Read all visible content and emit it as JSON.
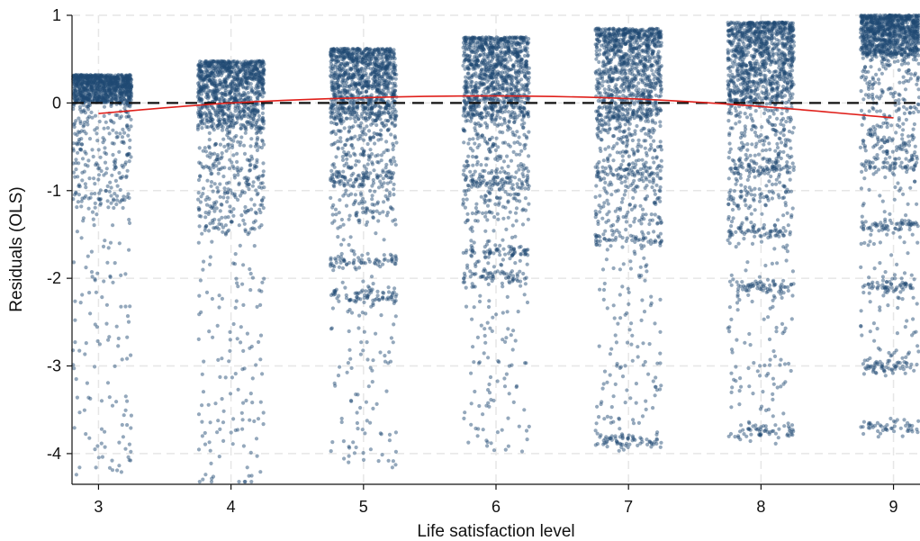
{
  "chart_data": {
    "type": "scatter",
    "title": "",
    "xlabel": "Life satisfaction level",
    "ylabel": "Residuals (OLS)",
    "xlim": [
      2.8,
      9.2
    ],
    "ylim": [
      -4.35,
      1.0
    ],
    "x_ticks": [
      3,
      4,
      5,
      6,
      7,
      8,
      9
    ],
    "y_ticks": [
      1,
      0,
      -1,
      -2,
      -3,
      -4
    ],
    "x_tick_labels": [
      "3",
      "4",
      "5",
      "6",
      "7",
      "8",
      "9"
    ],
    "y_tick_labels": [
      "1",
      "0",
      "-1",
      "-2",
      "-3",
      "-4"
    ],
    "grid": true,
    "legend": "none",
    "reference_line": {
      "y": 0,
      "style": "dashed",
      "color": "#111111"
    },
    "series": [
      {
        "type": "jittered-scatter",
        "color": "#1f4a73",
        "jitter_width": 0.25,
        "groups": [
          {
            "x": 3,
            "upper_bound": 0.32,
            "dense_floor": 0.0,
            "bands": []
          },
          {
            "x": 4,
            "upper_bound": 0.48,
            "dense_floor": -0.3,
            "bands": []
          },
          {
            "x": 5,
            "upper_bound": 0.62,
            "dense_floor": -0.2,
            "bands": [
              -0.85,
              -1.8,
              -2.2
            ]
          },
          {
            "x": 6,
            "upper_bound": 0.75,
            "dense_floor": -0.15,
            "bands": [
              -0.9,
              -1.7,
              -2.0
            ]
          },
          {
            "x": 7,
            "upper_bound": 0.85,
            "dense_floor": -0.2,
            "bands": [
              -0.8,
              -1.55,
              -3.85
            ]
          },
          {
            "x": 8,
            "upper_bound": 0.92,
            "dense_floor": 0.0,
            "bands": [
              -0.75,
              -1.45,
              -2.1,
              -3.75
            ]
          },
          {
            "x": 9,
            "upper_bound": 1.0,
            "dense_floor": 0.55,
            "bands": [
              -0.7,
              -1.4,
              -2.1,
              -3.0,
              -3.7
            ]
          }
        ]
      },
      {
        "type": "fit-line",
        "color": "#e0201b",
        "x": [
          3,
          4,
          5,
          6,
          7,
          8,
          9
        ],
        "y": [
          -0.12,
          0.0,
          0.06,
          0.08,
          0.05,
          -0.04,
          -0.17
        ]
      }
    ]
  }
}
